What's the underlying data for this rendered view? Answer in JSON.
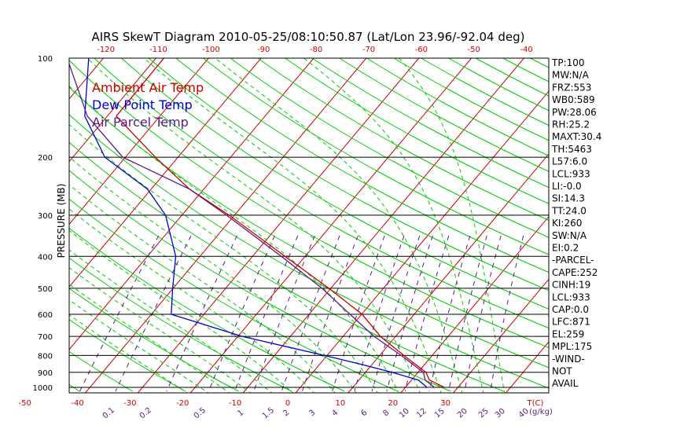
{
  "chart_data": {
    "type": "line",
    "title": "AIRS SkewT Diagram 2010-05-25/08:10:50.87 (Lat/Lon 23.96/-92.04 deg)",
    "ylabel": "PRESSURE (MB)",
    "pressure_ticks": [
      100,
      200,
      300,
      400,
      500,
      600,
      700,
      800,
      900,
      1000
    ],
    "top_temp_ticks": [
      -120,
      -110,
      -100,
      -90,
      -80,
      -70,
      -60,
      -50,
      -40
    ],
    "bottom_temp_ticks": [
      -50,
      -40,
      -30,
      -20,
      -10,
      0,
      10,
      20,
      30
    ],
    "bottom_temp_unit": "T(C)",
    "mixing_ratio_labels": [
      "0.1",
      "0.2",
      "0.5",
      "1",
      "1.5",
      "2",
      "3",
      "4",
      "6",
      "8",
      "10",
      "12",
      "15",
      "20",
      "25",
      "30",
      "40"
    ],
    "mixing_ratio_unit": "(g/kg)",
    "legend": [
      {
        "name": "Ambient Air Temp",
        "color": "#cc0000"
      },
      {
        "name": "Dew Point Temp",
        "color": "#0000cc"
      },
      {
        "name": "Air Parcel Temp",
        "color": "#5a1a8a"
      }
    ],
    "series": [
      {
        "name": "Ambient Air Temp",
        "color": "#cc0000",
        "points": [
          {
            "p": 100,
            "t": -78.5
          },
          {
            "p": 150,
            "t": -78.3
          },
          {
            "p": 200,
            "t": -64.3
          },
          {
            "p": 250,
            "t": -52.7
          },
          {
            "p": 300,
            "t": -41.0
          },
          {
            "p": 400,
            "t": -23.8
          },
          {
            "p": 500,
            "t": -10.4
          },
          {
            "p": 600,
            "t": 0.1
          },
          {
            "p": 700,
            "t": 7.1
          },
          {
            "p": 800,
            "t": 14.6
          },
          {
            "p": 900,
            "t": 21.5
          },
          {
            "p": 950,
            "t": 23.4
          },
          {
            "p": 1000,
            "t": 27.4
          }
        ]
      },
      {
        "name": "Dew Point Temp",
        "color": "#0000cc",
        "points": [
          {
            "p": 100,
            "t": -92.8
          },
          {
            "p": 150,
            "t": -84.3
          },
          {
            "p": 200,
            "t": -73.9
          },
          {
            "p": 250,
            "t": -60.7
          },
          {
            "p": 300,
            "t": -53.1
          },
          {
            "p": 400,
            "t": -44.6
          },
          {
            "p": 500,
            "t": -40.1
          },
          {
            "p": 600,
            "t": -36.2
          },
          {
            "p": 700,
            "t": -19.2
          },
          {
            "p": 800,
            "t": -0.5
          },
          {
            "p": 850,
            "t": 7.7
          },
          {
            "p": 900,
            "t": 15.0
          },
          {
            "p": 950,
            "t": 21.3
          },
          {
            "p": 1000,
            "t": 24.1
          }
        ]
      },
      {
        "name": "Air Parcel Temp",
        "color": "#5a1a8a",
        "points": [
          {
            "p": 100,
            "t": -96.9
          },
          {
            "p": 150,
            "t": -83.8
          },
          {
            "p": 200,
            "t": -70.5
          },
          {
            "p": 250,
            "t": -52.7
          },
          {
            "p": 300,
            "t": -41.5
          },
          {
            "p": 400,
            "t": -24.5
          },
          {
            "p": 500,
            "t": -11.7
          },
          {
            "p": 600,
            "t": -2.2
          },
          {
            "p": 700,
            "t": 5.9
          },
          {
            "p": 800,
            "t": 14.1
          },
          {
            "p": 900,
            "t": 21.0
          },
          {
            "p": 950,
            "t": 22.6
          },
          {
            "p": 1000,
            "t": 25.5
          }
        ]
      }
    ],
    "indices": [
      "TP:100",
      "MW:N/A",
      "FRZ:553",
      "WB0:589",
      "PW:28.06",
      "RH:25.2",
      "MAXT:30.4",
      "TH:5463",
      "L57:6.0",
      "LCL:933",
      "LI:-0.0",
      "SI:14.3",
      "TT:24.0",
      "KI:260",
      "SW:N/A",
      "EI:0.2",
      "-PARCEL-",
      "CAPE:252",
      "CINH:19",
      "LCL:933",
      "CAP:0.0",
      "LFC:871",
      "EL:259",
      "MPL:175",
      "-WIND-",
      "NOT",
      "AVAIL"
    ],
    "grid": true,
    "legend_position": "top-left",
    "colors": {
      "isotherm": "#cc0000",
      "dry_adiabat": "#00cc00",
      "moist_adiabat": "#00cc00",
      "mixing_ratio": "#5a1a8a",
      "isobar": "#000000"
    }
  }
}
